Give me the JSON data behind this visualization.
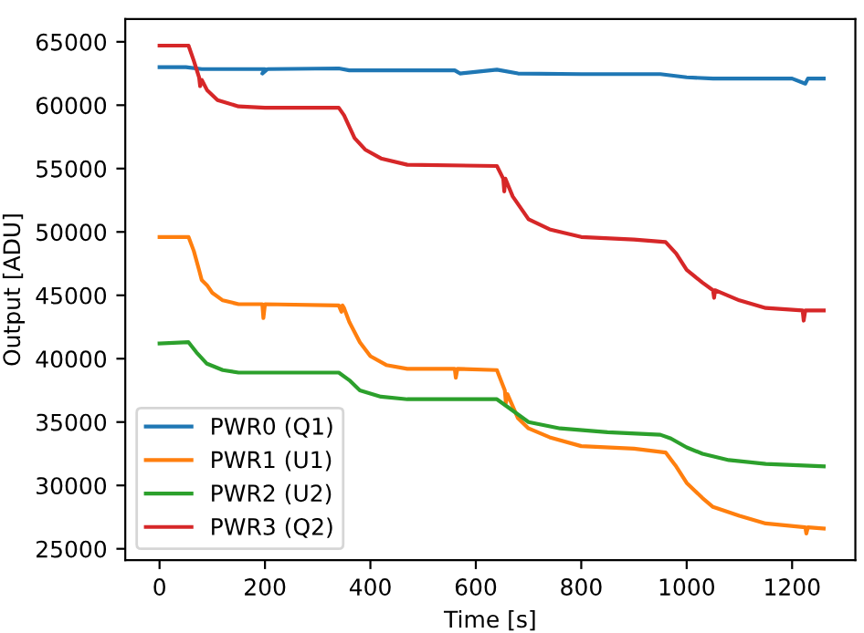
{
  "chart_data": {
    "type": "line",
    "xlabel": "Time [s]",
    "ylabel": "Output [ADU]",
    "xlim": [
      -65,
      1320
    ],
    "ylim": [
      24100,
      66800
    ],
    "xticks": [
      0,
      200,
      400,
      600,
      800,
      1000,
      1200
    ],
    "yticks": [
      25000,
      30000,
      35000,
      40000,
      45000,
      50000,
      55000,
      60000,
      65000
    ],
    "grid": false,
    "legend": "bottom left",
    "marker": "none",
    "line_style": "solid",
    "series": [
      {
        "name": "PWR0 (Q1)",
        "color": "#1f77b4",
        "x": [
          0,
          50,
          80,
          200,
          195,
          205,
          340,
          360,
          560,
          570,
          640,
          680,
          800,
          950,
          1000,
          1050,
          1200,
          1225,
          1230,
          1260
        ],
        "values": [
          63000,
          63000,
          62850,
          62850,
          62500,
          62850,
          62900,
          62750,
          62750,
          62500,
          62800,
          62500,
          62450,
          62450,
          62200,
          62100,
          62100,
          61700,
          62100,
          62100
        ]
      },
      {
        "name": "PWR1 (U1)",
        "color": "#ff7f0e",
        "x": [
          0,
          55,
          65,
          75,
          80,
          90,
          100,
          120,
          150,
          195,
          197,
          200,
          340,
          345,
          347,
          350,
          360,
          380,
          400,
          430,
          470,
          560,
          562,
          565,
          640,
          655,
          657,
          660,
          680,
          700,
          740,
          800,
          900,
          960,
          980,
          1000,
          1030,
          1050,
          1100,
          1150,
          1225,
          1227,
          1230,
          1260
        ],
        "values": [
          49600,
          49600,
          48500,
          47000,
          46200,
          45800,
          45200,
          44600,
          44300,
          44300,
          43200,
          44300,
          44200,
          43700,
          44200,
          44000,
          42900,
          41300,
          40200,
          39500,
          39200,
          39200,
          38500,
          39200,
          39100,
          37500,
          36500,
          37200,
          35300,
          34500,
          33800,
          33100,
          32900,
          32600,
          31500,
          30200,
          29000,
          28300,
          27600,
          27000,
          26700,
          26200,
          26700,
          26600
        ]
      },
      {
        "name": "PWR2 (U2)",
        "color": "#2ca02c",
        "x": [
          0,
          55,
          70,
          90,
          120,
          150,
          340,
          360,
          380,
          420,
          470,
          640,
          660,
          700,
          760,
          850,
          950,
          970,
          1000,
          1030,
          1080,
          1150,
          1260
        ],
        "values": [
          41200,
          41300,
          40500,
          39600,
          39100,
          38900,
          38900,
          38300,
          37500,
          37000,
          36800,
          36800,
          36200,
          35000,
          34500,
          34200,
          34000,
          33700,
          33000,
          32500,
          32000,
          31700,
          31500
        ]
      },
      {
        "name": "PWR3 (Q2)",
        "color": "#d62728",
        "x": [
          0,
          55,
          65,
          75,
          77,
          80,
          90,
          110,
          150,
          200,
          340,
          350,
          370,
          390,
          420,
          470,
          640,
          652,
          654,
          656,
          670,
          700,
          740,
          800,
          900,
          960,
          980,
          1000,
          1030,
          1050,
          1052,
          1054,
          1100,
          1150,
          1220,
          1222,
          1225,
          1260
        ],
        "values": [
          64700,
          64700,
          63500,
          62200,
          61500,
          62000,
          61200,
          60400,
          59900,
          59800,
          59800,
          59200,
          57400,
          56500,
          55800,
          55300,
          55200,
          54200,
          53200,
          54200,
          52800,
          51000,
          50200,
          49600,
          49400,
          49200,
          48300,
          47000,
          46000,
          45400,
          44800,
          45400,
          44600,
          44000,
          43800,
          43000,
          43800,
          43800
        ]
      }
    ]
  }
}
